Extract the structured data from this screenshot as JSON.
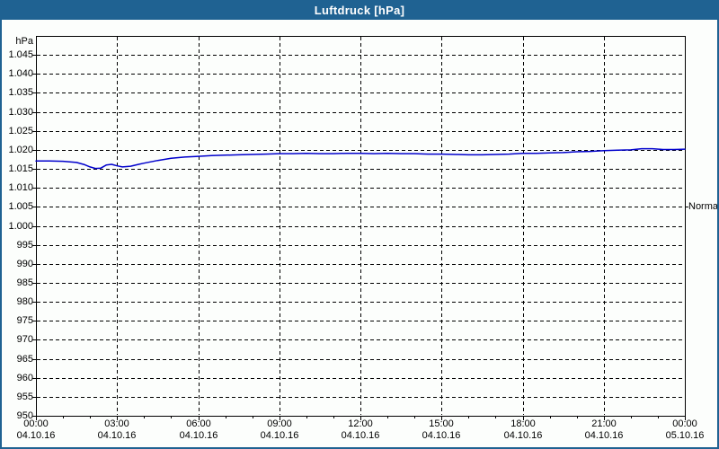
{
  "window": {
    "title": "Luftdruck [hPa]"
  },
  "colors": {
    "titlebar_bg": "#1f6292",
    "title_text": "#ffffff",
    "frame": "#1f6292",
    "chart_bg": "#fcfefc",
    "series_line": "#0000cc",
    "grid": "#000000",
    "label_text": "#000000"
  },
  "y_axis": {
    "unit": "hPa",
    "ticks": [
      {
        "label": "1.045",
        "value": 1045
      },
      {
        "label": "1.040",
        "value": 1040
      },
      {
        "label": "1.035",
        "value": 1035
      },
      {
        "label": "1.030",
        "value": 1030
      },
      {
        "label": "1.025",
        "value": 1025
      },
      {
        "label": "1.020",
        "value": 1020
      },
      {
        "label": "1.015",
        "value": 1015
      },
      {
        "label": "1.010",
        "value": 1010
      },
      {
        "label": "1.005",
        "value": 1005
      },
      {
        "label": "1.000",
        "value": 1000
      },
      {
        "label": "995",
        "value": 995
      },
      {
        "label": "990",
        "value": 990
      },
      {
        "label": "985",
        "value": 985
      },
      {
        "label": "980",
        "value": 980
      },
      {
        "label": "975",
        "value": 975
      },
      {
        "label": "970",
        "value": 970
      },
      {
        "label": "965",
        "value": 965
      },
      {
        "label": "960",
        "value": 960
      },
      {
        "label": "955",
        "value": 955
      },
      {
        "label": "950",
        "value": 950
      }
    ]
  },
  "x_axis": {
    "ticks": [
      {
        "time": "00:00",
        "date": "04.10.16",
        "hour": 0
      },
      {
        "time": "03:00",
        "date": "04.10.16",
        "hour": 3
      },
      {
        "time": "06:00",
        "date": "04.10.16",
        "hour": 6
      },
      {
        "time": "09:00",
        "date": "04.10.16",
        "hour": 9
      },
      {
        "time": "12:00",
        "date": "04.10.16",
        "hour": 12
      },
      {
        "time": "15:00",
        "date": "04.10.16",
        "hour": 15
      },
      {
        "time": "18:00",
        "date": "04.10.16",
        "hour": 18
      },
      {
        "time": "21:00",
        "date": "04.10.16",
        "hour": 21
      },
      {
        "time": "00:00",
        "date": "05.10.16",
        "hour": 24
      }
    ]
  },
  "annotations": [
    {
      "label": "Normal",
      "value": 1005,
      "side": "right"
    }
  ],
  "chart_data": {
    "type": "line",
    "title": "Luftdruck [hPa]",
    "ylabel": "hPa",
    "ylim": [
      950,
      1050
    ],
    "y_tick_step": 5,
    "xlim_hours": [
      0,
      24
    ],
    "x_major_tick_hours": 3,
    "x_minor_tick_hours": 1,
    "grid": "dashed",
    "legend_position": "none",
    "annotations": [
      {
        "label": "Normal",
        "value_hpa": 1005,
        "position": "right-axis"
      }
    ],
    "series": [
      {
        "name": "Luftdruck",
        "unit": "hPa",
        "color": "#0000cc",
        "points": [
          [
            0,
            1017.1
          ],
          [
            0.5,
            1017.1
          ],
          [
            1,
            1017.0
          ],
          [
            1.5,
            1016.7
          ],
          [
            1.8,
            1016.1
          ],
          [
            2.0,
            1015.5
          ],
          [
            2.2,
            1015.1
          ],
          [
            2.4,
            1015.2
          ],
          [
            2.6,
            1016.0
          ],
          [
            2.8,
            1016.2
          ],
          [
            3.0,
            1015.8
          ],
          [
            3.2,
            1015.5
          ],
          [
            3.5,
            1015.7
          ],
          [
            3.8,
            1016.2
          ],
          [
            4.0,
            1016.5
          ],
          [
            4.5,
            1017.2
          ],
          [
            5.0,
            1017.8
          ],
          [
            5.5,
            1018.1
          ],
          [
            6.0,
            1018.3
          ],
          [
            6.5,
            1018.5
          ],
          [
            7.0,
            1018.6
          ],
          [
            7.5,
            1018.7
          ],
          [
            8.0,
            1018.8
          ],
          [
            8.5,
            1018.9
          ],
          [
            9.0,
            1019.0
          ],
          [
            9.5,
            1019.0
          ],
          [
            10.0,
            1019.1
          ],
          [
            10.5,
            1019.0
          ],
          [
            11.0,
            1019.0
          ],
          [
            11.5,
            1019.1
          ],
          [
            12.0,
            1019.1
          ],
          [
            12.5,
            1019.0
          ],
          [
            13.0,
            1019.1
          ],
          [
            13.5,
            1019.0
          ],
          [
            14.0,
            1019.0
          ],
          [
            14.5,
            1018.9
          ],
          [
            15.0,
            1018.9
          ],
          [
            15.5,
            1018.8
          ],
          [
            16.0,
            1018.7
          ],
          [
            16.5,
            1018.7
          ],
          [
            17.0,
            1018.8
          ],
          [
            17.5,
            1018.9
          ],
          [
            18.0,
            1019.1
          ],
          [
            18.5,
            1019.1
          ],
          [
            19.0,
            1019.2
          ],
          [
            19.5,
            1019.3
          ],
          [
            20.0,
            1019.5
          ],
          [
            20.5,
            1019.6
          ],
          [
            21.0,
            1019.8
          ],
          [
            21.5,
            1019.9
          ],
          [
            22.0,
            1020.0
          ],
          [
            22.4,
            1020.3
          ],
          [
            22.8,
            1020.3
          ],
          [
            23.2,
            1020.1
          ],
          [
            23.6,
            1020.1
          ],
          [
            24.0,
            1020.2
          ]
        ]
      }
    ]
  }
}
